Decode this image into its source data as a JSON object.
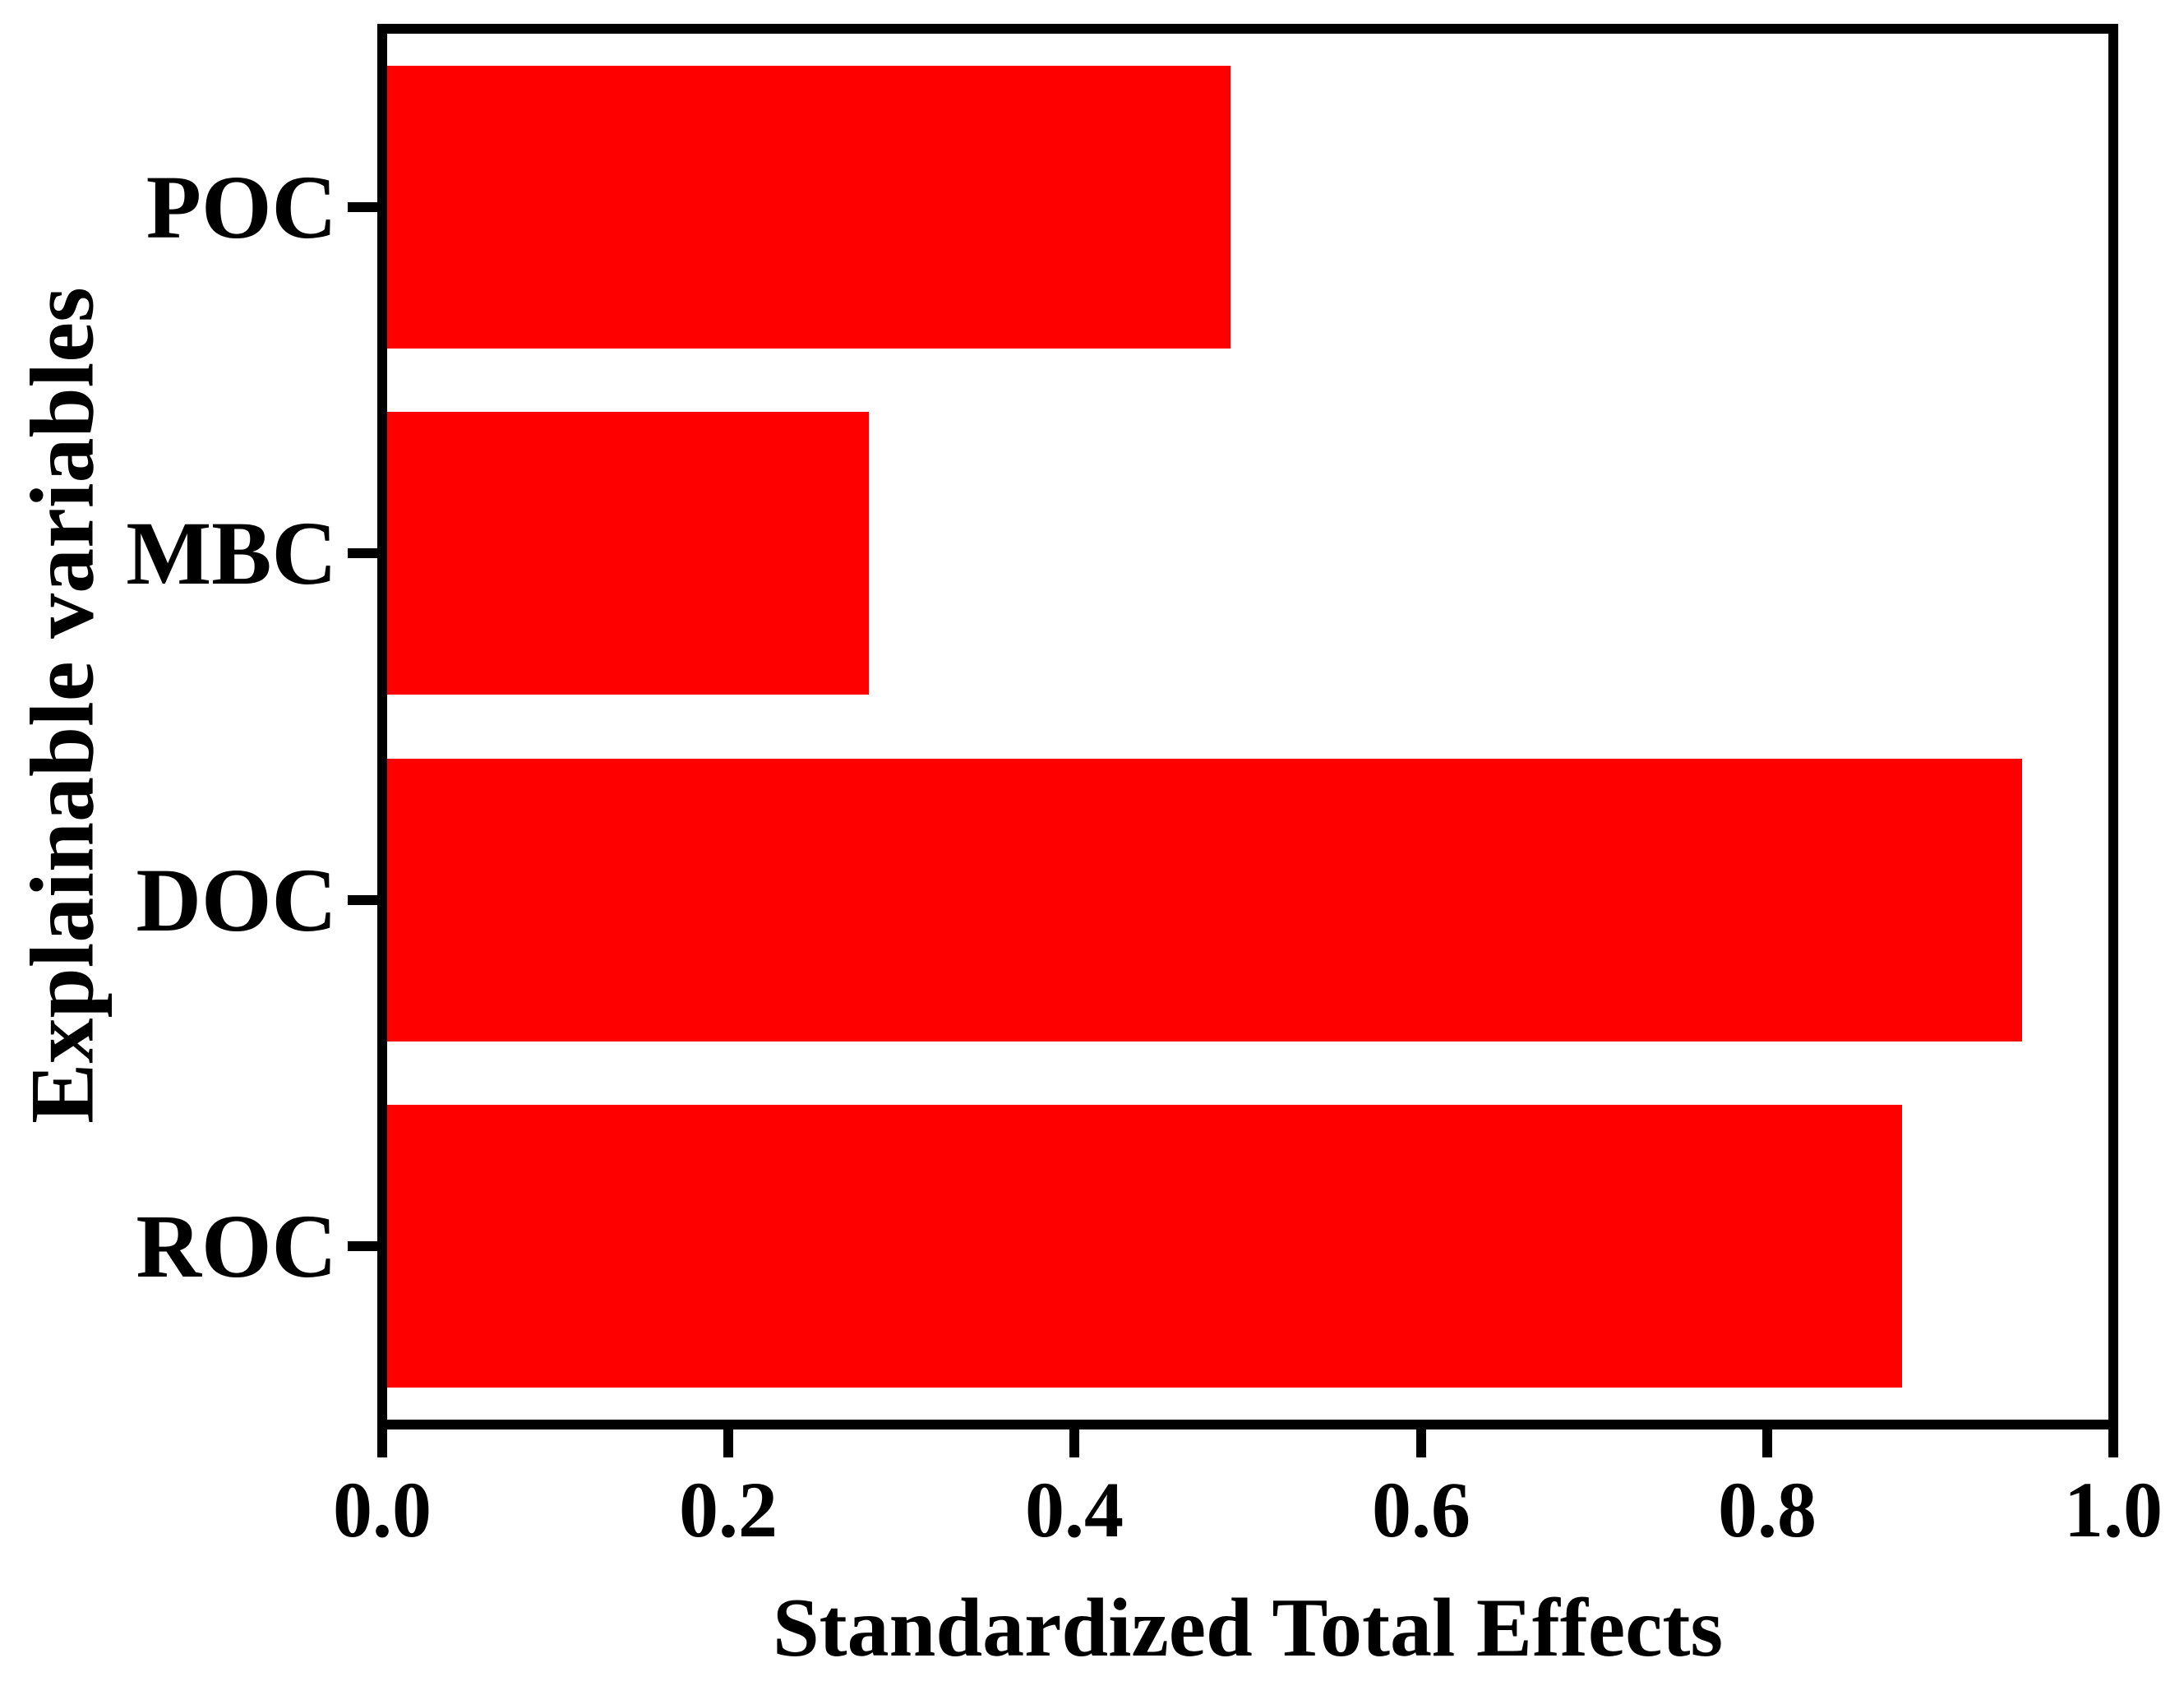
{
  "figure": {
    "background": "#ffffff"
  },
  "chart_data": {
    "type": "bar",
    "orientation": "horizontal",
    "title": "",
    "xlabel": "Standardized Total Effects",
    "ylabel": "Explainable variables",
    "categories": [
      "POC",
      "MBC",
      "DOC",
      "ROC"
    ],
    "values": [
      0.49,
      0.28,
      0.95,
      0.88
    ],
    "xlim": [
      0,
      1
    ],
    "xticks": [
      0,
      0.2,
      0.4,
      0.6,
      0.8,
      1
    ],
    "xtick_labels": [
      "0.0",
      "0.2",
      "0.4",
      "0.6",
      "0.8",
      "1.0"
    ],
    "grid": false,
    "legend": false,
    "bar_color": "#ff0000",
    "axis_color": "#000000",
    "text_color": "#000000"
  }
}
